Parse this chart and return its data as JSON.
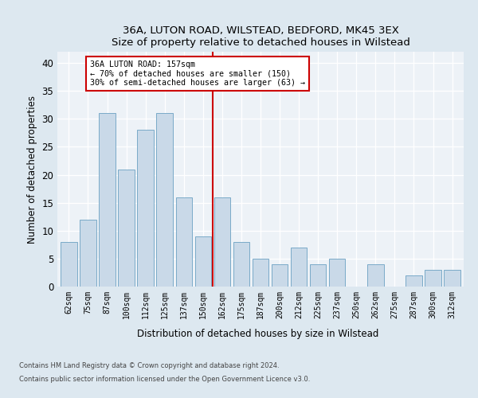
{
  "title1": "36A, LUTON ROAD, WILSTEAD, BEDFORD, MK45 3EX",
  "title2": "Size of property relative to detached houses in Wilstead",
  "xlabel": "Distribution of detached houses by size in Wilstead",
  "ylabel": "Number of detached properties",
  "categories": [
    "62sqm",
    "75sqm",
    "87sqm",
    "100sqm",
    "112sqm",
    "125sqm",
    "137sqm",
    "150sqm",
    "162sqm",
    "175sqm",
    "187sqm",
    "200sqm",
    "212sqm",
    "225sqm",
    "237sqm",
    "250sqm",
    "262sqm",
    "275sqm",
    "287sqm",
    "300sqm",
    "312sqm"
  ],
  "values": [
    8,
    12,
    31,
    21,
    28,
    31,
    16,
    9,
    16,
    8,
    5,
    4,
    7,
    4,
    5,
    0,
    4,
    0,
    2,
    3,
    3
  ],
  "bar_color": "#c9d9e8",
  "bar_edge_color": "#7aaac8",
  "vline_pos": 7.5,
  "annotation_line1": "36A LUTON ROAD: 157sqm",
  "annotation_line2": "← 70% of detached houses are smaller (150)",
  "annotation_line3": "30% of semi-detached houses are larger (63) →",
  "annotation_box_color": "#ffffff",
  "annotation_box_edge_color": "#cc0000",
  "vline_color": "#cc0000",
  "ylim": [
    0,
    42
  ],
  "yticks": [
    0,
    5,
    10,
    15,
    20,
    25,
    30,
    35,
    40
  ],
  "footer1": "Contains HM Land Registry data © Crown copyright and database right 2024.",
  "footer2": "Contains public sector information licensed under the Open Government Licence v3.0.",
  "bg_color": "#dde8f0",
  "plot_bg_color": "#edf2f7"
}
